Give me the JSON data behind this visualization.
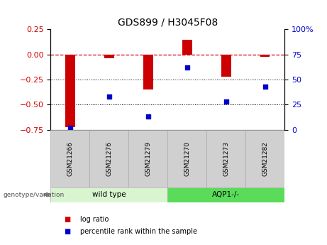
{
  "title": "GDS899 / H3045F08",
  "samples": [
    "GSM21266",
    "GSM21276",
    "GSM21279",
    "GSM21270",
    "GSM21273",
    "GSM21282"
  ],
  "log_ratio": [
    -0.72,
    -0.04,
    -0.35,
    0.15,
    -0.22,
    -0.02
  ],
  "percentile_rank": [
    2,
    33,
    13,
    62,
    28,
    43
  ],
  "bar_color": "#CC0000",
  "dot_color": "#0000CC",
  "left_ylim": [
    -0.75,
    0.25
  ],
  "right_ylim": [
    0,
    100
  ],
  "left_yticks": [
    -0.75,
    -0.5,
    -0.25,
    0,
    0.25
  ],
  "right_yticks": [
    0,
    25,
    50,
    75,
    100
  ],
  "dotted_lines": [
    -0.25,
    -0.5
  ],
  "group_info": [
    {
      "label": "wild type",
      "start": 0,
      "end": 2,
      "color": "#d8f5d0"
    },
    {
      "label": "AQP1-/-",
      "start": 3,
      "end": 5,
      "color": "#5adc5a"
    }
  ],
  "sample_box_color": "#d0d0d0",
  "title_fontsize": 10,
  "tick_fontsize": 8,
  "legend_log_ratio": "log ratio",
  "legend_percentile": "percentile rank within the sample",
  "genotype_label": "genotype/variation"
}
